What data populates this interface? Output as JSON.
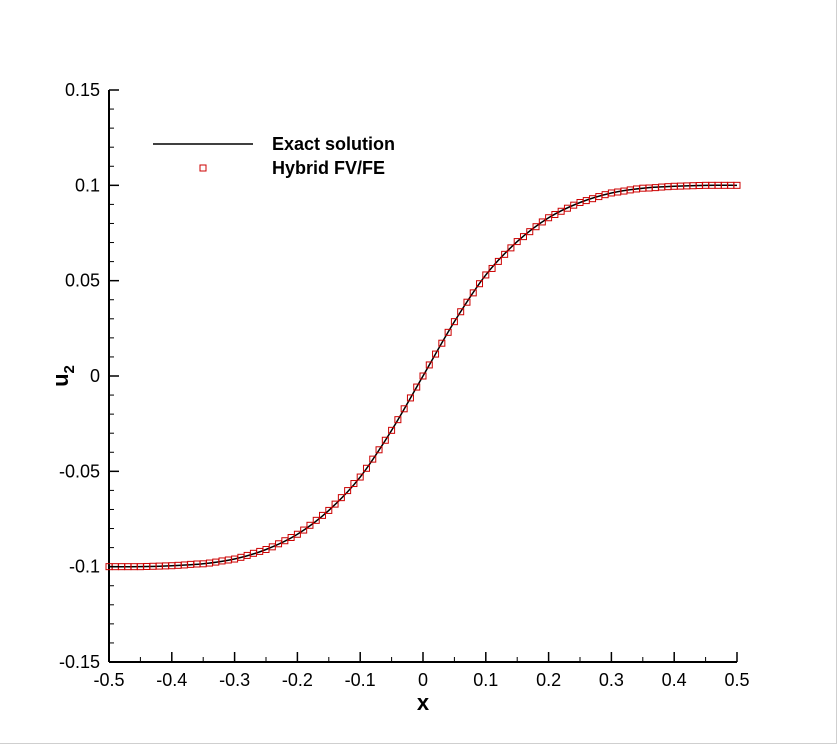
{
  "chart_data": {
    "type": "line",
    "title": "",
    "xlabel": "x",
    "ylabel_main": "u",
    "ylabel_sub": "2",
    "xlim": [
      -0.5,
      0.5
    ],
    "ylim": [
      -0.15,
      0.15
    ],
    "x_ticks": [
      -0.5,
      -0.4,
      -0.3,
      -0.2,
      -0.1,
      0,
      0.1,
      0.2,
      0.3,
      0.4,
      0.5
    ],
    "x_tick_labels": [
      "-0.5",
      "-0.4",
      "-0.3",
      "-0.2",
      "-0.1",
      "0",
      "0.1",
      "0.2",
      "0.3",
      "0.4",
      "0.5"
    ],
    "y_ticks": [
      -0.15,
      -0.1,
      -0.05,
      0,
      0.05,
      0.1,
      0.15
    ],
    "y_tick_labels": [
      "-0.15",
      "-0.1",
      "-0.05",
      "0",
      "0.05",
      "0.1",
      "0.15"
    ],
    "grid": false,
    "legend_position": "top-left",
    "series": [
      {
        "name": "Exact solution",
        "style": "line",
        "color": "#000000",
        "x": [
          -0.5,
          -0.45,
          -0.4,
          -0.35,
          -0.3,
          -0.25,
          -0.2,
          -0.15,
          -0.1,
          -0.05,
          0,
          0.05,
          0.1,
          0.15,
          0.2,
          0.25,
          0.3,
          0.35,
          0.4,
          0.45,
          0.5
        ],
        "y": [
          -0.1,
          -0.1,
          -0.0995,
          -0.0985,
          -0.096,
          -0.091,
          -0.083,
          -0.0705,
          -0.053,
          -0.0285,
          0,
          0.0285,
          0.053,
          0.0705,
          0.083,
          0.091,
          0.096,
          0.0985,
          0.0995,
          0.1,
          0.1
        ]
      },
      {
        "name": "Hybrid FV/FE",
        "style": "markers",
        "marker": "open-square",
        "color": "#cc0000",
        "x": [
          -0.5,
          -0.49,
          -0.48,
          -0.47,
          -0.46,
          -0.45,
          -0.44,
          -0.43,
          -0.42,
          -0.41,
          -0.4,
          -0.39,
          -0.38,
          -0.37,
          -0.36,
          -0.35,
          -0.34,
          -0.33,
          -0.32,
          -0.31,
          -0.3,
          -0.29,
          -0.28,
          -0.27,
          -0.26,
          -0.25,
          -0.24,
          -0.23,
          -0.22,
          -0.21,
          -0.2,
          -0.19,
          -0.18,
          -0.17,
          -0.16,
          -0.15,
          -0.14,
          -0.13,
          -0.12,
          -0.11,
          -0.1,
          -0.09,
          -0.08,
          -0.07,
          -0.06,
          -0.05,
          -0.04,
          -0.03,
          -0.02,
          -0.01,
          0,
          0.01,
          0.02,
          0.03,
          0.04,
          0.05,
          0.06,
          0.07,
          0.08,
          0.09,
          0.1,
          0.11,
          0.12,
          0.13,
          0.14,
          0.15,
          0.16,
          0.17,
          0.18,
          0.19,
          0.2,
          0.21,
          0.22,
          0.23,
          0.24,
          0.25,
          0.26,
          0.27,
          0.28,
          0.29,
          0.3,
          0.31,
          0.32,
          0.33,
          0.34,
          0.35,
          0.36,
          0.37,
          0.38,
          0.39,
          0.4,
          0.41,
          0.42,
          0.43,
          0.44,
          0.45,
          0.46,
          0.47,
          0.48,
          0.49,
          0.5
        ],
        "y": [
          -0.1,
          -0.1,
          -0.1,
          -0.1,
          -0.1,
          -0.1,
          -0.0999,
          -0.0998,
          -0.0997,
          -0.0996,
          -0.0995,
          -0.0993,
          -0.0991,
          -0.0988,
          -0.0986,
          -0.0985,
          -0.0981,
          -0.0976,
          -0.097,
          -0.0965,
          -0.096,
          -0.0951,
          -0.0941,
          -0.093,
          -0.092,
          -0.091,
          -0.0896,
          -0.088,
          -0.0864,
          -0.0847,
          -0.083,
          -0.0808,
          -0.0783,
          -0.0757,
          -0.0731,
          -0.0705,
          -0.0672,
          -0.0638,
          -0.0601,
          -0.0564,
          -0.053,
          -0.0484,
          -0.0436,
          -0.0387,
          -0.0337,
          -0.0285,
          -0.0229,
          -0.0172,
          -0.0115,
          -0.0058,
          0,
          0.0058,
          0.0115,
          0.0172,
          0.0229,
          0.0285,
          0.0337,
          0.0387,
          0.0436,
          0.0484,
          0.053,
          0.0564,
          0.0601,
          0.0638,
          0.0672,
          0.0705,
          0.0731,
          0.0757,
          0.0783,
          0.0808,
          0.083,
          0.0847,
          0.0864,
          0.088,
          0.0896,
          0.091,
          0.092,
          0.093,
          0.0941,
          0.0951,
          0.096,
          0.0965,
          0.097,
          0.0976,
          0.0981,
          0.0985,
          0.0986,
          0.0988,
          0.0991,
          0.0993,
          0.0995,
          0.0996,
          0.0997,
          0.0998,
          0.0999,
          0.1,
          0.1,
          0.1,
          0.1,
          0.1,
          0.1
        ]
      }
    ]
  }
}
